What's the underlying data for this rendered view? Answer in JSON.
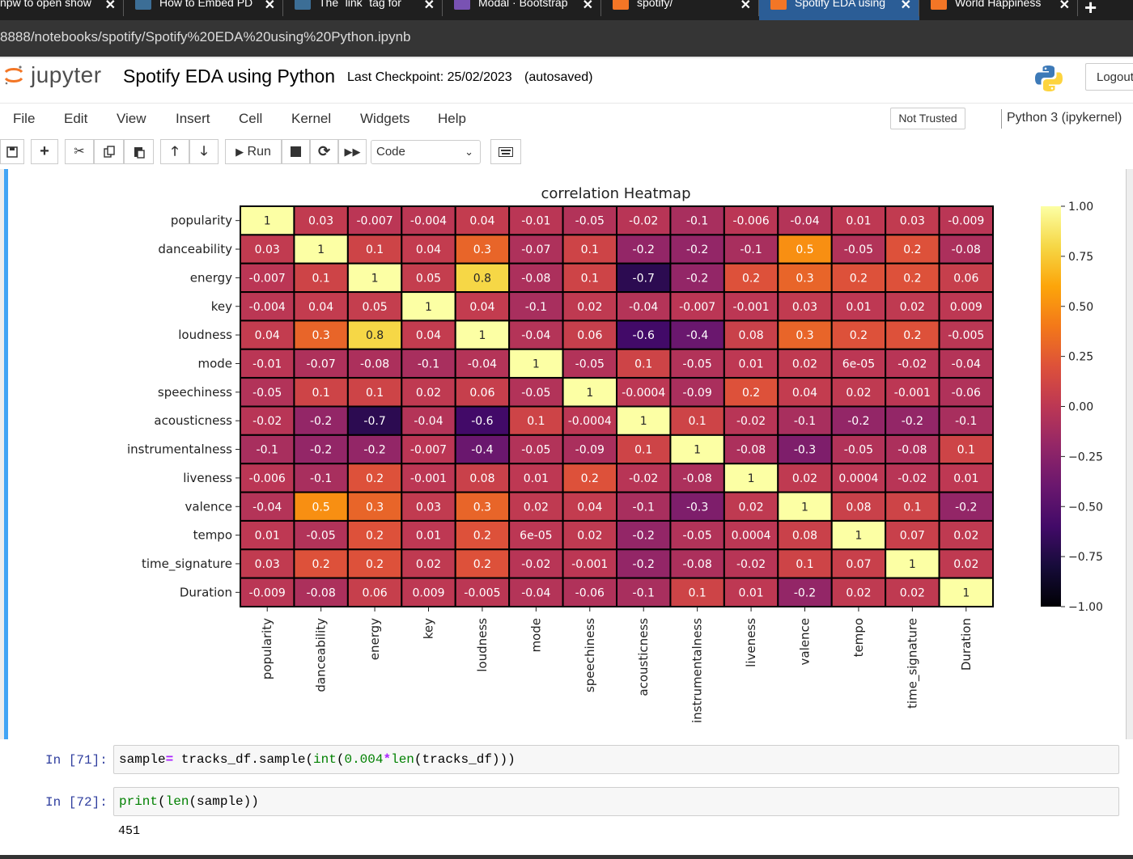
{
  "browser": {
    "tabs": [
      {
        "label": "npw to open show",
        "icon_color": "#1f1f1f"
      },
      {
        "label": "How to Embed PD",
        "icon_color": "#3c6e96"
      },
      {
        "label": "The `link` tag for",
        "icon_color": "#3c6e96"
      },
      {
        "label": "Modal · Bootstrap",
        "icon_color": "#7952b3"
      },
      {
        "label": "spotify/",
        "icon_color": "#f37626"
      },
      {
        "label": "Spotify EDA using",
        "icon_color": "#f37626"
      },
      {
        "label": "World Happiness",
        "icon_color": "#f37626"
      }
    ],
    "active_tab": 5,
    "close_glyph": "✕",
    "new_tab_glyph": "+",
    "url": "8888/notebooks/spotify/Spotify%20EDA%20using%20Python.ipynb"
  },
  "header": {
    "logo_text": "jupyter",
    "notebook_title": "Spotify EDA using Python",
    "checkpoint": "Last Checkpoint: 25/02/2023",
    "autosave_status": "(autosaved)",
    "logout_label": "Logout"
  },
  "menubar": {
    "items": [
      "File",
      "Edit",
      "View",
      "Insert",
      "Cell",
      "Kernel",
      "Widgets",
      "Help"
    ],
    "trust_status": "Not Trusted",
    "kernel": "Python 3 (ipykernel)"
  },
  "toolbar": {
    "run_label": "Run",
    "cell_type": "Code",
    "icons": [
      "save-icon",
      "plus-icon",
      "cut-icon",
      "copy-icon",
      "paste-icon",
      "arrow-up-icon",
      "arrow-down-icon",
      "play-icon",
      "stop-icon",
      "restart-icon",
      "fast-forward-icon",
      "keyboard-icon"
    ]
  },
  "chart_data": {
    "type": "heatmap",
    "title": "correlation Heatmap",
    "colormap": "inferno",
    "vmin": -1.0,
    "vmax": 1.0,
    "x_categories": [
      "popularity",
      "danceability",
      "energy",
      "key",
      "loudness",
      "mode",
      "speechiness",
      "acousticness",
      "instrumentalness",
      "liveness",
      "valence",
      "tempo",
      "time_signature",
      "Duration"
    ],
    "y_categories": [
      "popularity",
      "danceability",
      "energy",
      "key",
      "loudness",
      "mode",
      "speechiness",
      "acousticness",
      "instrumentalness",
      "liveness",
      "valence",
      "tempo",
      "time_signature",
      "Duration"
    ],
    "colorbar_ticks": [
      "1.00",
      "0.75",
      "0.50",
      "0.25",
      "0.00",
      "−0.25",
      "−0.50",
      "−0.75",
      "−1.00"
    ],
    "values": [
      [
        1,
        0.03,
        -0.007,
        -0.004,
        0.04,
        -0.01,
        -0.05,
        -0.02,
        -0.1,
        -0.006,
        -0.04,
        0.01,
        0.03,
        -0.009
      ],
      [
        0.03,
        1,
        0.1,
        0.04,
        0.3,
        -0.07,
        0.1,
        -0.2,
        -0.2,
        -0.1,
        0.5,
        -0.05,
        0.2,
        -0.08
      ],
      [
        -0.007,
        0.1,
        1,
        0.05,
        0.8,
        -0.08,
        0.1,
        -0.7,
        -0.2,
        0.2,
        0.3,
        0.2,
        0.2,
        0.06
      ],
      [
        -0.004,
        0.04,
        0.05,
        1,
        0.04,
        -0.1,
        0.02,
        -0.04,
        -0.007,
        -0.001,
        0.03,
        0.01,
        0.02,
        0.009
      ],
      [
        0.04,
        0.3,
        0.8,
        0.04,
        1,
        -0.04,
        0.06,
        -0.6,
        -0.4,
        0.08,
        0.3,
        0.2,
        0.2,
        -0.005
      ],
      [
        -0.01,
        -0.07,
        -0.08,
        -0.1,
        -0.04,
        1,
        -0.05,
        0.1,
        -0.05,
        0.01,
        0.02,
        6e-05,
        -0.02,
        -0.04
      ],
      [
        -0.05,
        0.1,
        0.1,
        0.02,
        0.06,
        -0.05,
        1,
        -0.0004,
        -0.09,
        0.2,
        0.04,
        0.02,
        -0.001,
        -0.06
      ],
      [
        -0.02,
        -0.2,
        -0.7,
        -0.04,
        -0.6,
        0.1,
        -0.0004,
        1,
        0.1,
        -0.02,
        -0.1,
        -0.2,
        -0.2,
        -0.1
      ],
      [
        -0.1,
        -0.2,
        -0.2,
        -0.007,
        -0.4,
        -0.05,
        -0.09,
        0.1,
        1,
        -0.08,
        -0.3,
        -0.05,
        -0.08,
        0.1
      ],
      [
        -0.006,
        -0.1,
        0.2,
        -0.001,
        0.08,
        0.01,
        0.2,
        -0.02,
        -0.08,
        1,
        0.02,
        0.0004,
        -0.02,
        0.01
      ],
      [
        -0.04,
        0.5,
        0.3,
        0.03,
        0.3,
        0.02,
        0.04,
        -0.1,
        -0.3,
        0.02,
        1,
        0.08,
        0.1,
        -0.2
      ],
      [
        0.01,
        -0.05,
        0.2,
        0.01,
        0.2,
        6e-05,
        0.02,
        -0.2,
        -0.05,
        0.0004,
        0.08,
        1,
        0.07,
        0.02
      ],
      [
        0.03,
        0.2,
        0.2,
        0.02,
        0.2,
        -0.02,
        -0.001,
        -0.2,
        -0.08,
        -0.02,
        0.1,
        0.07,
        1,
        0.02
      ],
      [
        -0.009,
        -0.08,
        0.06,
        0.009,
        -0.005,
        -0.04,
        -0.06,
        -0.1,
        0.1,
        0.01,
        -0.2,
        0.02,
        0.02,
        1
      ]
    ],
    "labels": [
      [
        "1",
        "0.03",
        "-0.007",
        "-0.004",
        "0.04",
        "-0.01",
        "-0.05",
        "-0.02",
        "-0.1",
        "-0.006",
        "-0.04",
        "0.01",
        "0.03",
        "-0.009"
      ],
      [
        "0.03",
        "1",
        "0.1",
        "0.04",
        "0.3",
        "-0.07",
        "0.1",
        "-0.2",
        "-0.2",
        "-0.1",
        "0.5",
        "-0.05",
        "0.2",
        "-0.08"
      ],
      [
        "-0.007",
        "0.1",
        "1",
        "0.05",
        "0.8",
        "-0.08",
        "0.1",
        "-0.7",
        "-0.2",
        "0.2",
        "0.3",
        "0.2",
        "0.2",
        "0.06"
      ],
      [
        "-0.004",
        "0.04",
        "0.05",
        "1",
        "0.04",
        "-0.1",
        "0.02",
        "-0.04",
        "-0.007",
        "-0.001",
        "0.03",
        "0.01",
        "0.02",
        "0.009"
      ],
      [
        "0.04",
        "0.3",
        "0.8",
        "0.04",
        "1",
        "-0.04",
        "0.06",
        "-0.6",
        "-0.4",
        "0.08",
        "0.3",
        "0.2",
        "0.2",
        "-0.005"
      ],
      [
        "-0.01",
        "-0.07",
        "-0.08",
        "-0.1",
        "-0.04",
        "1",
        "-0.05",
        "0.1",
        "-0.05",
        "0.01",
        "0.02",
        "6e-05",
        "-0.02",
        "-0.04"
      ],
      [
        "-0.05",
        "0.1",
        "0.1",
        "0.02",
        "0.06",
        "-0.05",
        "1",
        "-0.0004",
        "-0.09",
        "0.2",
        "0.04",
        "0.02",
        "-0.001",
        "-0.06"
      ],
      [
        "-0.02",
        "-0.2",
        "-0.7",
        "-0.04",
        "-0.6",
        "0.1",
        "-0.0004",
        "1",
        "0.1",
        "-0.02",
        "-0.1",
        "-0.2",
        "-0.2",
        "-0.1"
      ],
      [
        "-0.1",
        "-0.2",
        "-0.2",
        "-0.007",
        "-0.4",
        "-0.05",
        "-0.09",
        "0.1",
        "1",
        "-0.08",
        "-0.3",
        "-0.05",
        "-0.08",
        "0.1"
      ],
      [
        "-0.006",
        "-0.1",
        "0.2",
        "-0.001",
        "0.08",
        "0.01",
        "0.2",
        "-0.02",
        "-0.08",
        "1",
        "0.02",
        "0.0004",
        "-0.02",
        "0.01"
      ],
      [
        "-0.04",
        "0.5",
        "0.3",
        "0.03",
        "0.3",
        "0.02",
        "0.04",
        "-0.1",
        "-0.3",
        "0.02",
        "1",
        "0.08",
        "0.1",
        "-0.2"
      ],
      [
        "0.01",
        "-0.05",
        "0.2",
        "0.01",
        "0.2",
        "6e-05",
        "0.02",
        "-0.2",
        "-0.05",
        "0.0004",
        "0.08",
        "1",
        "0.07",
        "0.02"
      ],
      [
        "0.03",
        "0.2",
        "0.2",
        "0.02",
        "0.2",
        "-0.02",
        "-0.001",
        "-0.2",
        "-0.08",
        "-0.02",
        "0.1",
        "0.07",
        "1",
        "0.02"
      ],
      [
        "-0.009",
        "-0.08",
        "0.06",
        "0.009",
        "-0.005",
        "-0.04",
        "-0.06",
        "-0.1",
        "0.1",
        "0.01",
        "-0.2",
        "0.02",
        "0.02",
        "1"
      ]
    ]
  },
  "cells": [
    {
      "prompt": "In [71]:",
      "code": "sample= tracks_df.sample(int(0.004*len(tracks_df)))"
    },
    {
      "prompt": "In [72]:",
      "code": "print(len(sample))",
      "output": "451"
    }
  ],
  "colors": {
    "accent": "#42a5f5",
    "prompt": "#303f9f",
    "active_tab": "#2b5d96"
  }
}
